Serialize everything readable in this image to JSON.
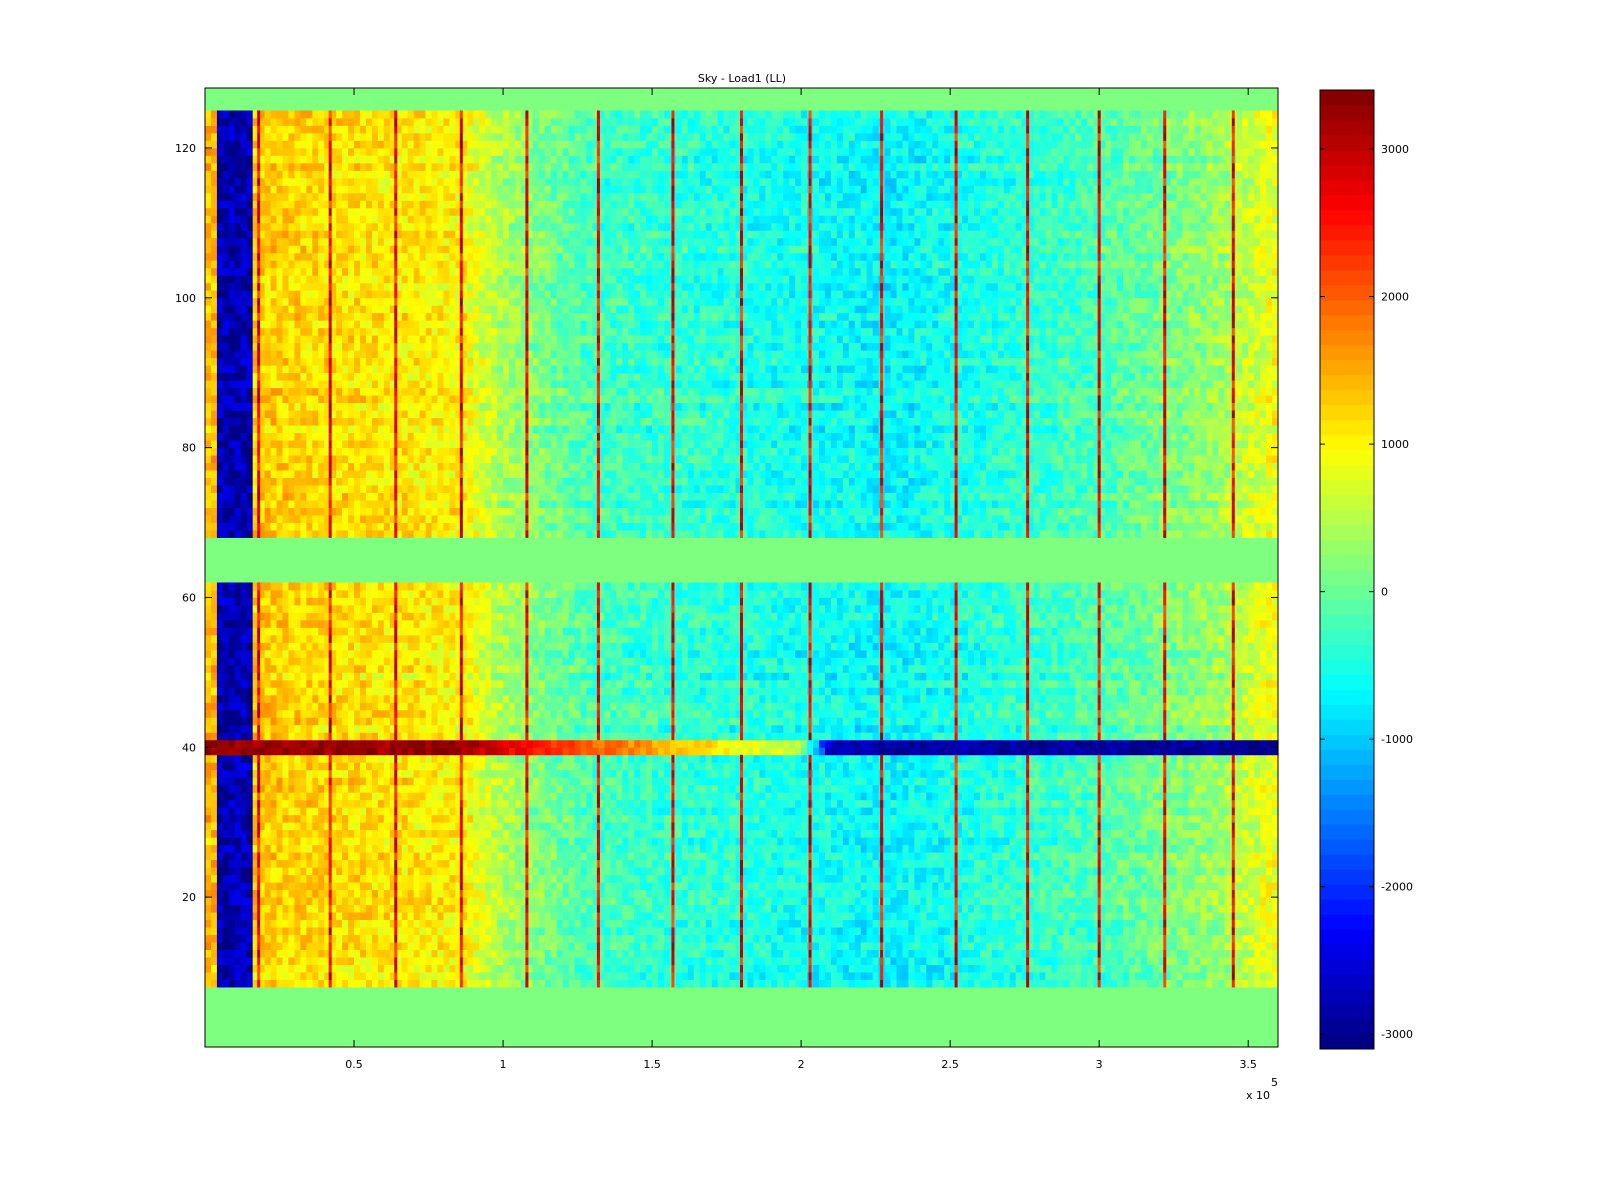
{
  "chart_data": {
    "type": "heatmap",
    "title": "Sky - Load1 (LL)",
    "xlabel": "",
    "ylabel": "",
    "x_multiplier_label": "x 10",
    "x_multiplier_exponent": "5",
    "xlim": [
      0,
      360000
    ],
    "ylim": [
      0,
      128
    ],
    "x_ticks": [
      50000,
      100000,
      150000,
      200000,
      250000,
      300000,
      350000
    ],
    "x_tick_labels": [
      "0.5",
      "1",
      "1.5",
      "2",
      "2.5",
      "3",
      "3.5"
    ],
    "y_ticks": [
      20,
      40,
      60,
      80,
      100,
      120
    ],
    "y_tick_labels": [
      "20",
      "40",
      "60",
      "80",
      "100",
      "120"
    ],
    "colormap": "jet",
    "clim": [
      -3100,
      3400
    ],
    "colorbar_ticks": [
      3000,
      2000,
      1000,
      0,
      -1000,
      -2000,
      -3000
    ],
    "colorbar_tick_labels": [
      "3000",
      "2000",
      "1000",
      "0",
      "-1000",
      "-2000",
      "-3000"
    ],
    "empty_row_bands": [
      [
        0,
        8
      ],
      [
        61.5,
        67.5
      ],
      [
        125,
        128
      ]
    ],
    "empty_row_band_value": 0,
    "column_profile": [
      {
        "x": 0,
        "value": 1400
      },
      {
        "x": 18000,
        "value": 1250
      },
      {
        "x": 86000,
        "value": 1000
      },
      {
        "x": 100000,
        "value": 400
      },
      {
        "x": 130000,
        "value": -250
      },
      {
        "x": 230000,
        "value": -700
      },
      {
        "x": 300000,
        "value": -200
      },
      {
        "x": 340000,
        "value": 300
      },
      {
        "x": 360000,
        "value": 900
      }
    ],
    "dark_left_band": {
      "x_range": [
        4000,
        16000
      ],
      "value": -2800
    },
    "spike_columns_x": [
      18000,
      42000,
      64000,
      86000,
      108000,
      132000,
      157000,
      180000,
      203000,
      227000,
      252000,
      276000,
      300000,
      322000,
      345000
    ],
    "spike_value": 2600,
    "anomaly_row": {
      "row": 39,
      "profile": [
        {
          "x": 0,
          "value": 3300
        },
        {
          "x": 86000,
          "value": 3200
        },
        {
          "x": 120000,
          "value": 2200
        },
        {
          "x": 200000,
          "value": 500
        },
        {
          "x": 210000,
          "value": -2800
        },
        {
          "x": 360000,
          "value": -3000
        }
      ]
    }
  }
}
